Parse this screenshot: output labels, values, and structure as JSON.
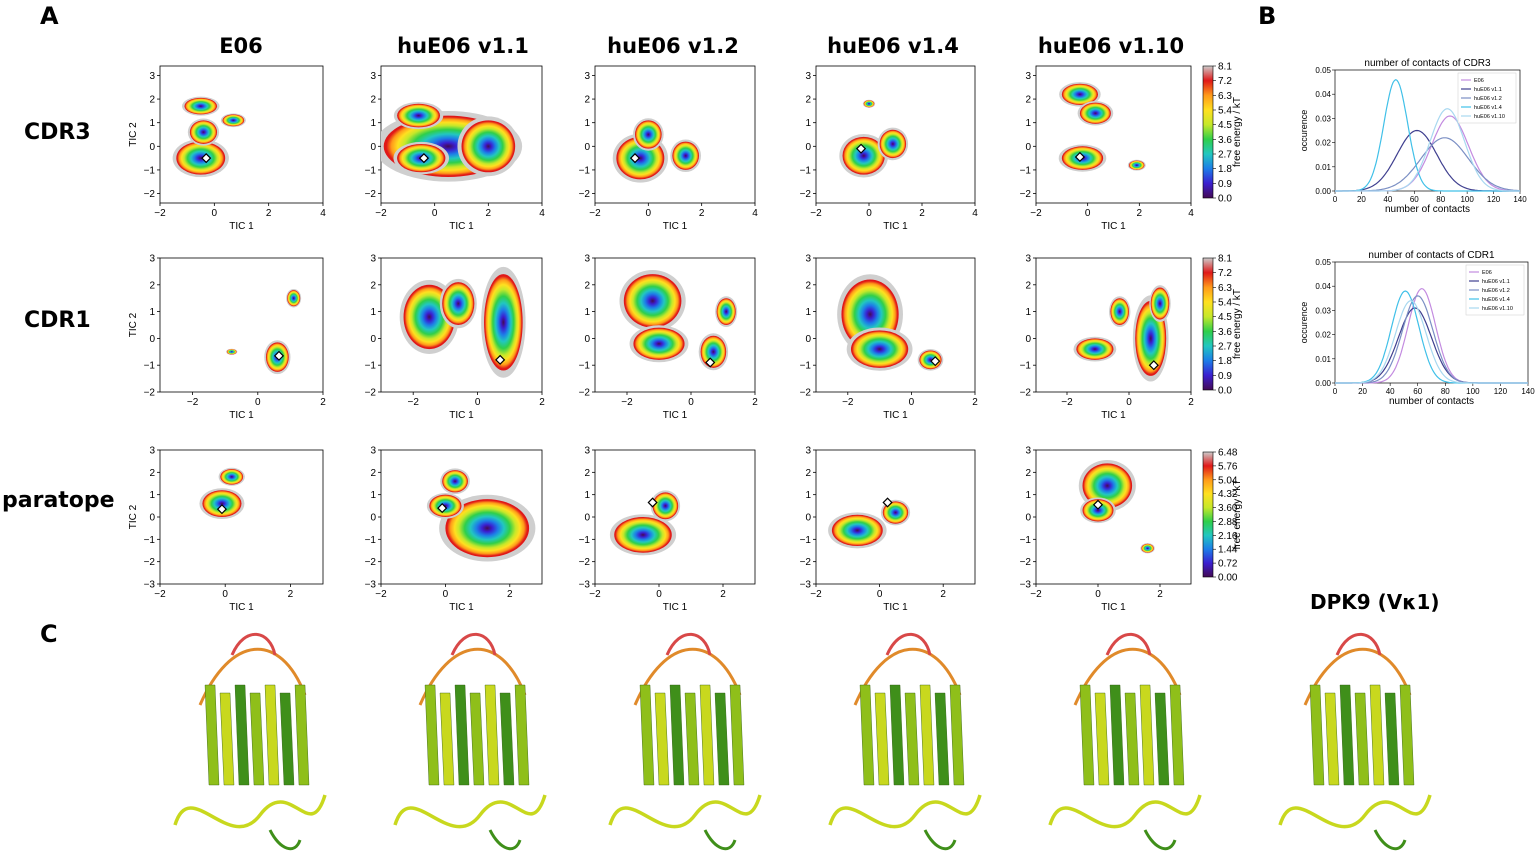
{
  "panels": {
    "A": "A",
    "B": "B",
    "C": "C"
  },
  "columns": [
    "E06",
    "huE06 v1.1",
    "huE06 v1.2",
    "huE06 v1.4",
    "huE06 v1.10"
  ],
  "rows": [
    "CDR3",
    "CDR1",
    "paratope"
  ],
  "dpk_label": "DPK9 (Vκ1)",
  "axes": {
    "xlabel": "TIC 1",
    "ylabel": "TIC 2",
    "cbar_label": "free energy / kT"
  },
  "free_energy_maps": [
    {
      "row": "CDR3",
      "xlim": [
        [
          -2,
          4
        ],
        [
          -2,
          4
        ],
        [
          -2,
          4
        ],
        [
          -2,
          4
        ],
        [
          -2,
          4
        ]
      ],
      "xticks": [
        [
          -2,
          0,
          2,
          4
        ],
        [
          -2,
          0,
          2,
          4
        ],
        [
          -2,
          0,
          2,
          4
        ],
        [
          -2,
          0,
          2,
          4
        ],
        [
          -2,
          0,
          2,
          4
        ]
      ],
      "ylim": [
        -2.4,
        3.4
      ],
      "yticks": [
        -2,
        -1,
        0,
        1,
        2,
        3
      ],
      "colorbar_ticks": [
        "0.0",
        "0.9",
        "1.8",
        "2.7",
        "3.6",
        "4.5",
        "5.4",
        "6.3",
        "7.2",
        "8.1"
      ]
    },
    {
      "row": "CDR1",
      "xlim": [
        [
          -3,
          2
        ],
        [
          -3,
          2
        ],
        [
          -3,
          2
        ],
        [
          -3,
          2
        ],
        [
          -3,
          2
        ]
      ],
      "xticks": [
        [
          -2,
          0,
          2
        ],
        [
          -2,
          0,
          2
        ],
        [
          -2,
          0,
          2
        ],
        [
          -2,
          0,
          2
        ],
        [
          -2,
          0,
          2
        ]
      ],
      "ylim": [
        -2,
        3
      ],
      "yticks": [
        -2,
        -1,
        0,
        1,
        2,
        3
      ],
      "colorbar_ticks": [
        "0.0",
        "0.9",
        "1.8",
        "2.7",
        "3.6",
        "4.5",
        "5.4",
        "6.3",
        "7.2",
        "8.1"
      ]
    },
    {
      "row": "paratope",
      "xlim": [
        [
          -2,
          3
        ],
        [
          -2,
          3
        ],
        [
          -2,
          3
        ],
        [
          -2,
          3
        ],
        [
          -2,
          3
        ]
      ],
      "xticks": [
        [
          -2,
          0,
          2
        ],
        [
          -2,
          0,
          2
        ],
        [
          -2,
          0,
          2
        ],
        [
          -2,
          0,
          2
        ],
        [
          -2,
          0,
          2
        ]
      ],
      "ylim": [
        -3,
        3
      ],
      "yticks": [
        -3,
        -2,
        -1,
        0,
        1,
        2,
        3
      ],
      "colorbar_ticks": [
        "0.00",
        "0.72",
        "1.44",
        "2.16",
        "2.88",
        "3.60",
        "4.32",
        "5.04",
        "5.76",
        "6.48"
      ]
    }
  ],
  "colorbar_colors": [
    "#440a54",
    "#3b1fd0",
    "#1d7de8",
    "#22c7c0",
    "#2fcf4a",
    "#c6e82a",
    "#ffe020",
    "#ff9a1a",
    "#e01818",
    "#cccccc"
  ],
  "chart_data": [
    {
      "type": "line",
      "title": "number of contacts of CDR3",
      "xlabel": "number of contacts",
      "ylabel": "occurence",
      "xlim": [
        0,
        140
      ],
      "ylim": [
        0,
        0.05
      ],
      "xticks": [
        0,
        20,
        40,
        60,
        80,
        100,
        120,
        140
      ],
      "yticks": [
        "0.00",
        "0.01",
        "0.02",
        "0.03",
        "0.04",
        "0.05"
      ],
      "legend_position": "top-right",
      "series": [
        {
          "name": "E06",
          "color": "#c38be0",
          "mu": 87,
          "sigma": 14,
          "peak": 0.031
        },
        {
          "name": "huE06 v1.1",
          "color": "#3f3f8f",
          "mu": 62,
          "sigma": 15,
          "peak": 0.025
        },
        {
          "name": "huE06 v1.2",
          "color": "#7b8fc4",
          "mu": 83,
          "sigma": 18,
          "peak": 0.022
        },
        {
          "name": "huE06 v1.4",
          "color": "#40c0e8",
          "mu": 46,
          "sigma": 9,
          "peak": 0.046
        },
        {
          "name": "huE06 v1.10",
          "color": "#a8d8f0",
          "mu": 85,
          "sigma": 13,
          "peak": 0.034
        }
      ]
    },
    {
      "type": "line",
      "title": "number of contacts of CDR1",
      "xlabel": "number of contacts",
      "ylabel": "occurence",
      "xlim": [
        0,
        140
      ],
      "ylim": [
        0,
        0.05
      ],
      "xticks": [
        0,
        20,
        40,
        60,
        80,
        100,
        120,
        140
      ],
      "yticks": [
        "0.00",
        "0.01",
        "0.02",
        "0.03",
        "0.04",
        "0.05"
      ],
      "legend_position": "top-right",
      "series": [
        {
          "name": "E06",
          "color": "#c38be0",
          "mu": 63,
          "sigma": 10,
          "peak": 0.039
        },
        {
          "name": "huE06 v1.1",
          "color": "#3f3f8f",
          "mu": 58,
          "sigma": 12,
          "peak": 0.031
        },
        {
          "name": "huE06 v1.2",
          "color": "#7b8fc4",
          "mu": 60,
          "sigma": 11,
          "peak": 0.036
        },
        {
          "name": "huE06 v1.4",
          "color": "#40c0e8",
          "mu": 51,
          "sigma": 10,
          "peak": 0.038
        },
        {
          "name": "huE06 v1.10",
          "color": "#a8d8f0",
          "mu": 55,
          "sigma": 11,
          "peak": 0.034
        }
      ]
    }
  ],
  "structures": {
    "count": 6,
    "colors": [
      "#8fbf1a",
      "#c8d81e",
      "#3f8f1a",
      "#e08a2a",
      "#d84848"
    ]
  }
}
